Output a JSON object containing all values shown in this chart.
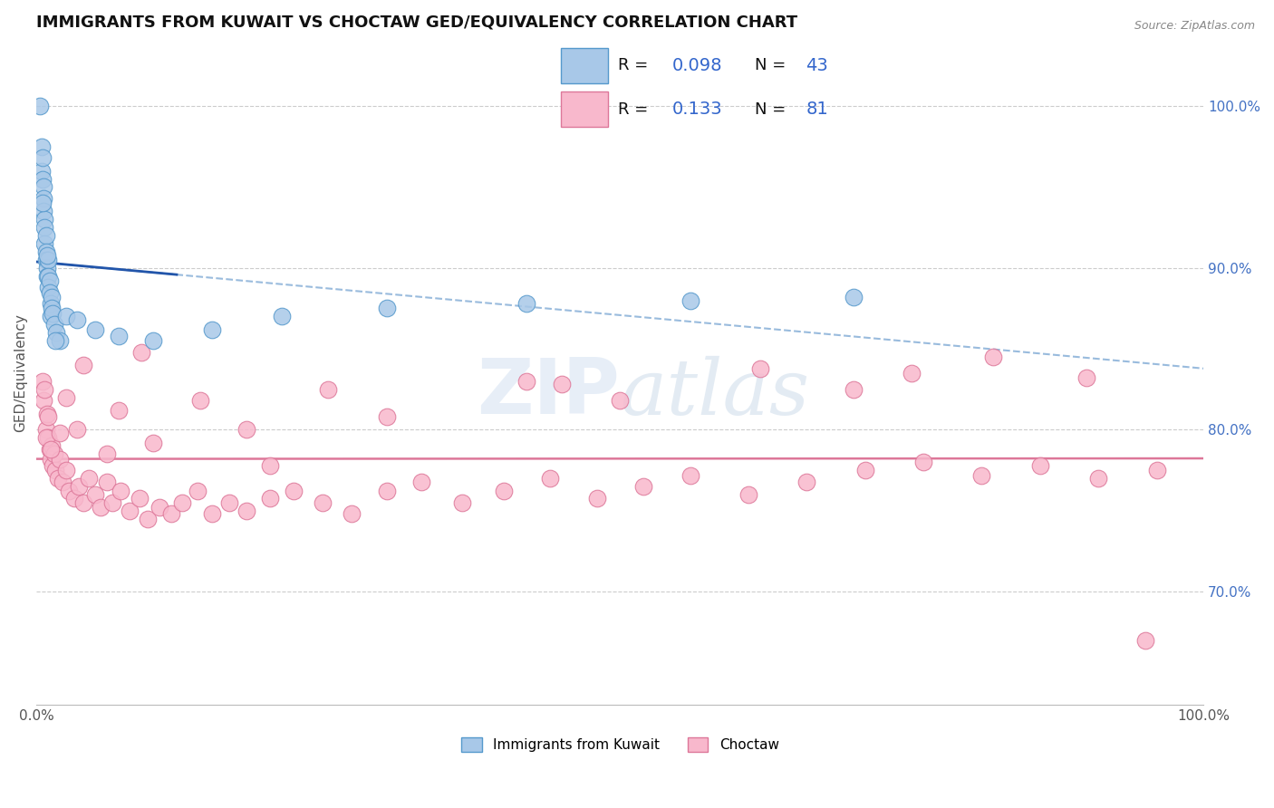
{
  "title": "IMMIGRANTS FROM KUWAIT VS CHOCTAW GED/EQUIVALENCY CORRELATION CHART",
  "source": "Source: ZipAtlas.com",
  "ylabel": "GED/Equivalency",
  "ytick_labels": [
    "70.0%",
    "80.0%",
    "90.0%",
    "100.0%"
  ],
  "ytick_values": [
    0.7,
    0.8,
    0.9,
    1.0
  ],
  "xmin": 0.0,
  "xmax": 1.0,
  "ymin": 0.63,
  "ymax": 1.04,
  "blue_color": "#a8c8e8",
  "blue_edge": "#5599cc",
  "blue_line_color": "#2255aa",
  "blue_dash_color": "#99bbdd",
  "pink_color": "#f8b8cc",
  "pink_edge": "#dd7799",
  "pink_line_color": "#dd7799",
  "legend_color": "#3366cc",
  "watermark_text": "ZIPatlas",
  "legend_r1": "0.098",
  "legend_n1": "43",
  "legend_r2": "0.133",
  "legend_n2": "81",
  "blue_x": [
    0.003,
    0.004,
    0.004,
    0.005,
    0.005,
    0.006,
    0.006,
    0.006,
    0.007,
    0.007,
    0.007,
    0.008,
    0.008,
    0.008,
    0.009,
    0.009,
    0.01,
    0.01,
    0.01,
    0.011,
    0.011,
    0.012,
    0.012,
    0.013,
    0.013,
    0.014,
    0.015,
    0.017,
    0.02,
    0.025,
    0.035,
    0.05,
    0.07,
    0.1,
    0.15,
    0.21,
    0.3,
    0.42,
    0.56,
    0.7,
    0.005,
    0.009,
    0.016
  ],
  "blue_y": [
    1.0,
    0.975,
    0.96,
    0.968,
    0.955,
    0.95,
    0.943,
    0.935,
    0.93,
    0.925,
    0.915,
    0.92,
    0.91,
    0.905,
    0.9,
    0.895,
    0.905,
    0.895,
    0.888,
    0.892,
    0.885,
    0.878,
    0.87,
    0.882,
    0.875,
    0.872,
    0.865,
    0.86,
    0.855,
    0.87,
    0.868,
    0.862,
    0.858,
    0.855,
    0.862,
    0.87,
    0.875,
    0.878,
    0.88,
    0.882,
    0.94,
    0.908,
    0.855
  ],
  "pink_x": [
    0.005,
    0.006,
    0.007,
    0.008,
    0.009,
    0.01,
    0.011,
    0.012,
    0.013,
    0.014,
    0.015,
    0.016,
    0.018,
    0.02,
    0.022,
    0.025,
    0.028,
    0.032,
    0.036,
    0.04,
    0.045,
    0.05,
    0.055,
    0.06,
    0.065,
    0.072,
    0.08,
    0.088,
    0.095,
    0.105,
    0.115,
    0.125,
    0.138,
    0.15,
    0.165,
    0.18,
    0.2,
    0.22,
    0.245,
    0.27,
    0.3,
    0.33,
    0.365,
    0.4,
    0.44,
    0.48,
    0.52,
    0.56,
    0.61,
    0.66,
    0.71,
    0.76,
    0.81,
    0.86,
    0.91,
    0.96,
    0.008,
    0.012,
    0.02,
    0.035,
    0.06,
    0.1,
    0.18,
    0.3,
    0.5,
    0.7,
    0.9,
    0.01,
    0.025,
    0.07,
    0.14,
    0.25,
    0.42,
    0.62,
    0.82,
    0.04,
    0.09,
    0.2,
    0.45,
    0.75,
    0.95
  ],
  "pink_y": [
    0.83,
    0.818,
    0.825,
    0.8,
    0.81,
    0.795,
    0.788,
    0.782,
    0.79,
    0.778,
    0.785,
    0.775,
    0.77,
    0.782,
    0.768,
    0.775,
    0.762,
    0.758,
    0.765,
    0.755,
    0.77,
    0.76,
    0.752,
    0.768,
    0.755,
    0.762,
    0.75,
    0.758,
    0.745,
    0.752,
    0.748,
    0.755,
    0.762,
    0.748,
    0.755,
    0.75,
    0.758,
    0.762,
    0.755,
    0.748,
    0.762,
    0.768,
    0.755,
    0.762,
    0.77,
    0.758,
    0.765,
    0.772,
    0.76,
    0.768,
    0.775,
    0.78,
    0.772,
    0.778,
    0.77,
    0.775,
    0.795,
    0.788,
    0.798,
    0.8,
    0.785,
    0.792,
    0.8,
    0.808,
    0.818,
    0.825,
    0.832,
    0.808,
    0.82,
    0.812,
    0.818,
    0.825,
    0.83,
    0.838,
    0.845,
    0.84,
    0.848,
    0.778,
    0.828,
    0.835,
    0.67
  ]
}
